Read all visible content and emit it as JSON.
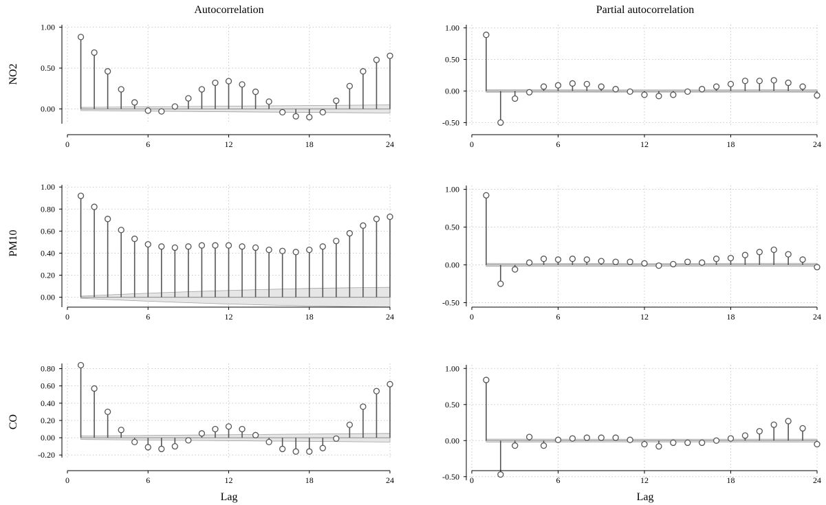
{
  "columns": [
    "Autocorrelation",
    "Partial autocorrelation"
  ],
  "rows": [
    "NO2",
    "PM10",
    "CO"
  ],
  "xlabel": "Lag",
  "style": {
    "stem_color": "#555555",
    "band_fill": "#e6e6e6",
    "band_stroke": "#a0a0a0",
    "grid_color": "#c8c8c8"
  },
  "chart_data": [
    {
      "type": "stem",
      "name": "NO2-acf",
      "column": "Autocorrelation",
      "row": "NO2",
      "xlim": [
        0,
        24
      ],
      "ylim": [
        -0.18,
        1.03
      ],
      "xticks": [
        0,
        6,
        12,
        18,
        24
      ],
      "yticks": [
        0.0,
        0.5,
        1.0
      ],
      "yticklabels": [
        "0.00",
        "0.50",
        "1.00"
      ],
      "band": {
        "start": [
          1,
          0.02
        ],
        "end": [
          24,
          0.05
        ]
      },
      "lags": [
        1,
        2,
        3,
        4,
        5,
        6,
        7,
        8,
        9,
        10,
        11,
        12,
        13,
        14,
        15,
        16,
        17,
        18,
        19,
        20,
        21,
        22,
        23,
        24
      ],
      "values": [
        0.88,
        0.69,
        0.46,
        0.24,
        0.08,
        -0.02,
        -0.03,
        0.03,
        0.13,
        0.24,
        0.32,
        0.34,
        0.3,
        0.21,
        0.09,
        -0.04,
        -0.09,
        -0.1,
        -0.04,
        0.1,
        0.28,
        0.46,
        0.6,
        0.65
      ]
    },
    {
      "type": "stem",
      "name": "NO2-pacf",
      "column": "Partial autocorrelation",
      "row": "NO2",
      "xlim": [
        0,
        24
      ],
      "ylim": [
        -0.55,
        1.05
      ],
      "xticks": [
        0,
        6,
        12,
        18,
        24
      ],
      "yticks": [
        -0.5,
        0.0,
        0.5,
        1.0
      ],
      "yticklabels": [
        "-0.50",
        "0.00",
        "0.50",
        "1.00"
      ],
      "band": {
        "start": [
          1,
          0.02
        ],
        "end": [
          24,
          0.02
        ]
      },
      "lags": [
        1,
        2,
        3,
        4,
        5,
        6,
        7,
        8,
        9,
        10,
        11,
        12,
        13,
        14,
        15,
        16,
        17,
        18,
        19,
        20,
        21,
        22,
        23,
        24
      ],
      "values": [
        0.89,
        -0.5,
        -0.12,
        -0.02,
        0.07,
        0.09,
        0.12,
        0.11,
        0.07,
        0.03,
        -0.01,
        -0.06,
        -0.08,
        -0.06,
        -0.01,
        0.03,
        0.07,
        0.11,
        0.16,
        0.16,
        0.17,
        0.13,
        0.07,
        -0.07
      ]
    },
    {
      "type": "stem",
      "name": "PM10-acf",
      "column": "Autocorrelation",
      "row": "PM10",
      "xlim": [
        0,
        24
      ],
      "ylim": [
        -0.09,
        1.02
      ],
      "xticks": [
        0,
        6,
        12,
        18,
        24
      ],
      "yticks": [
        0.0,
        0.2,
        0.4,
        0.6,
        0.8,
        1.0
      ],
      "yticklabels": [
        "0.00",
        "0.20",
        "0.40",
        "0.60",
        "0.80",
        "1.00"
      ],
      "band": {
        "start": [
          1,
          0.01
        ],
        "end": [
          24,
          0.09
        ]
      },
      "lags": [
        1,
        2,
        3,
        4,
        5,
        6,
        7,
        8,
        9,
        10,
        11,
        12,
        13,
        14,
        15,
        16,
        17,
        18,
        19,
        20,
        21,
        22,
        23,
        24
      ],
      "values": [
        0.92,
        0.82,
        0.71,
        0.61,
        0.53,
        0.48,
        0.46,
        0.45,
        0.46,
        0.47,
        0.47,
        0.47,
        0.46,
        0.45,
        0.43,
        0.42,
        0.41,
        0.43,
        0.46,
        0.51,
        0.58,
        0.65,
        0.71,
        0.73
      ]
    },
    {
      "type": "stem",
      "name": "PM10-pacf",
      "column": "Partial autocorrelation",
      "row": "PM10",
      "xlim": [
        0,
        24
      ],
      "ylim": [
        -0.55,
        1.05
      ],
      "xticks": [
        0,
        6,
        12,
        18,
        24
      ],
      "yticks": [
        -0.5,
        0.0,
        0.5,
        1.0
      ],
      "yticklabels": [
        "-0.50",
        "0.00",
        "0.50",
        "1.00"
      ],
      "band": {
        "start": [
          1,
          0.02
        ],
        "end": [
          24,
          0.02
        ]
      },
      "lags": [
        1,
        2,
        3,
        4,
        5,
        6,
        7,
        8,
        9,
        10,
        11,
        12,
        13,
        14,
        15,
        16,
        17,
        18,
        19,
        20,
        21,
        22,
        23,
        24
      ],
      "values": [
        0.92,
        -0.25,
        -0.06,
        0.03,
        0.08,
        0.07,
        0.08,
        0.07,
        0.05,
        0.04,
        0.04,
        0.02,
        -0.01,
        0.01,
        0.04,
        0.03,
        0.08,
        0.09,
        0.13,
        0.17,
        0.2,
        0.14,
        0.07,
        -0.03
      ]
    },
    {
      "type": "stem",
      "name": "CO-acf",
      "column": "Autocorrelation",
      "row": "CO",
      "xlim": [
        0,
        24
      ],
      "ylim": [
        -0.23,
        0.86
      ],
      "xticks": [
        0,
        6,
        12,
        18,
        24
      ],
      "yticks": [
        -0.2,
        0.0,
        0.2,
        0.4,
        0.6,
        0.8
      ],
      "yticklabels": [
        "-0.20",
        "0.00",
        "0.20",
        "0.40",
        "0.60",
        "0.80"
      ],
      "band": {
        "start": [
          1,
          0.02
        ],
        "end": [
          24,
          0.05
        ]
      },
      "lags": [
        1,
        2,
        3,
        4,
        5,
        6,
        7,
        8,
        9,
        10,
        11,
        12,
        13,
        14,
        15,
        16,
        17,
        18,
        19,
        20,
        21,
        22,
        23,
        24
      ],
      "values": [
        0.84,
        0.57,
        0.3,
        0.09,
        -0.05,
        -0.11,
        -0.13,
        -0.1,
        -0.03,
        0.05,
        0.1,
        0.13,
        0.1,
        0.03,
        -0.05,
        -0.13,
        -0.16,
        -0.16,
        -0.12,
        -0.01,
        0.15,
        0.36,
        0.54,
        0.62
      ]
    },
    {
      "type": "stem",
      "name": "CO-pacf",
      "column": "Partial autocorrelation",
      "row": "CO",
      "xlim": [
        0,
        24
      ],
      "ylim": [
        -0.55,
        1.05
      ],
      "xticks": [
        0,
        6,
        12,
        18,
        24
      ],
      "yticks": [
        -0.5,
        0.0,
        0.5,
        1.0
      ],
      "yticklabels": [
        "-0.50",
        "0.00",
        "0.50",
        "1.00"
      ],
      "band": {
        "start": [
          1,
          0.02
        ],
        "end": [
          24,
          0.02
        ]
      },
      "lags": [
        1,
        2,
        3,
        4,
        5,
        6,
        7,
        8,
        9,
        10,
        11,
        12,
        13,
        14,
        15,
        16,
        17,
        18,
        19,
        20,
        21,
        22,
        23,
        24
      ],
      "values": [
        0.84,
        -0.47,
        -0.07,
        0.05,
        -0.07,
        0.01,
        0.03,
        0.04,
        0.04,
        0.04,
        0.01,
        -0.05,
        -0.08,
        -0.03,
        -0.03,
        -0.03,
        0.0,
        0.03,
        0.07,
        0.13,
        0.22,
        0.27,
        0.17,
        -0.05
      ]
    }
  ]
}
